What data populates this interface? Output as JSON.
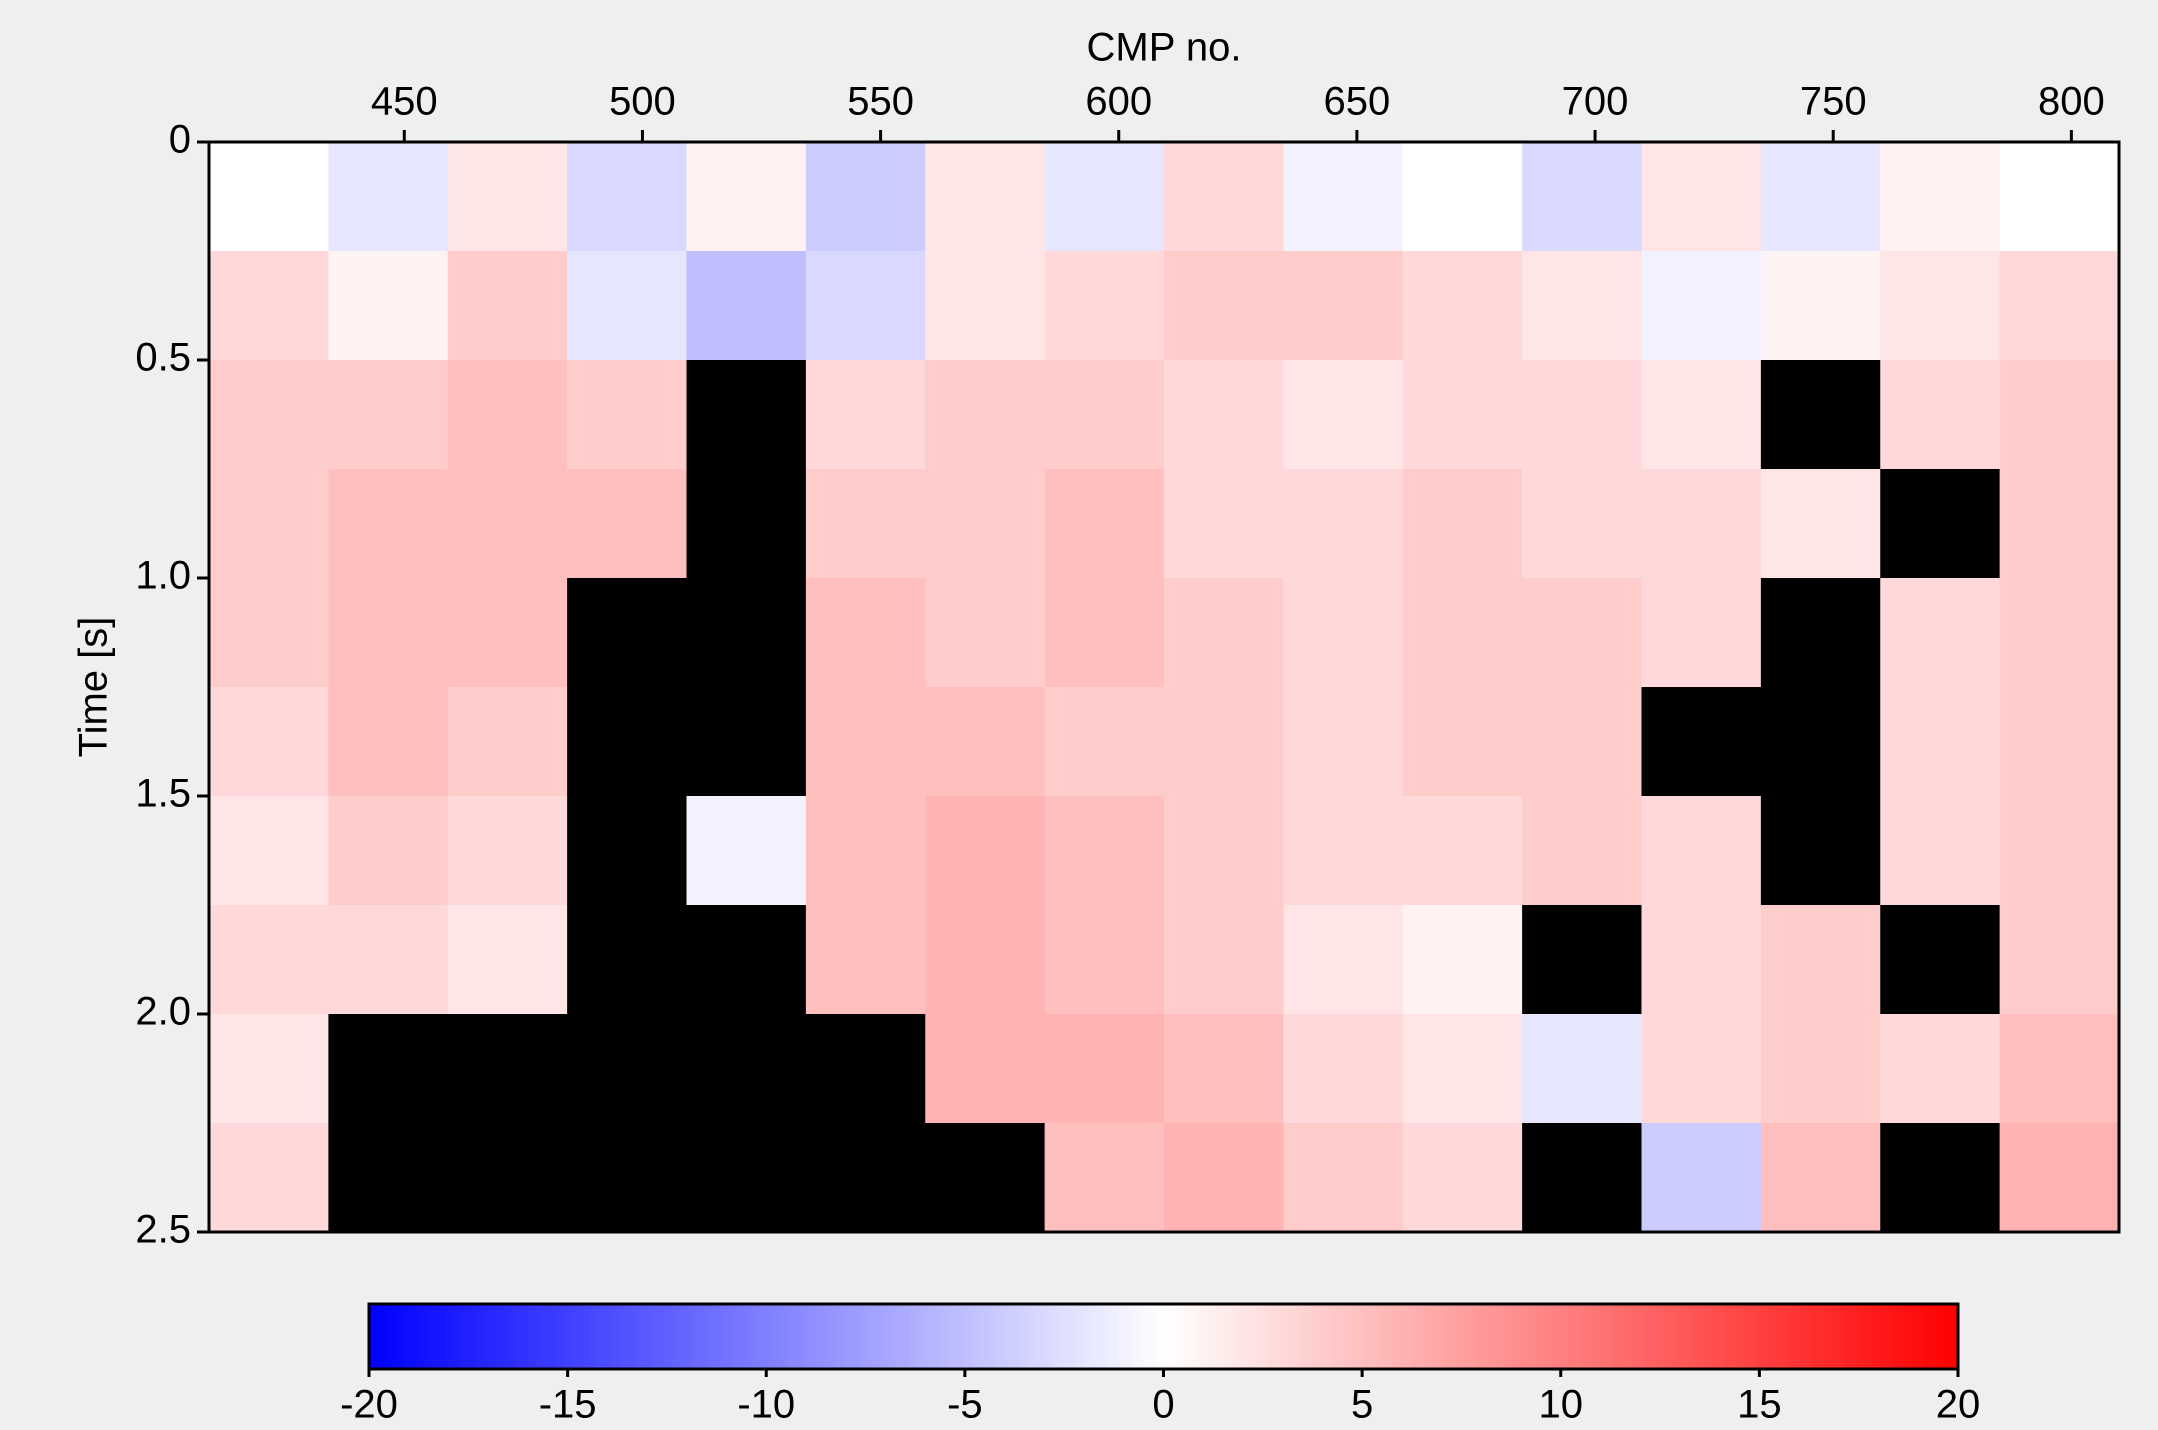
{
  "chart_data": {
    "type": "heatmap",
    "title": "CMP no.",
    "y_label": "Time  [s]",
    "xlim": [
      409,
      810
    ],
    "xticks": [
      450,
      500,
      550,
      600,
      650,
      700,
      750,
      800
    ],
    "ylim": [
      0,
      2.5
    ],
    "yticks": [
      0,
      0.5,
      {
        "value": 1,
        "label": "1.0"
      },
      1.5,
      {
        "value": 2,
        "label": "2.0"
      },
      2.5
    ],
    "clim": [
      -20,
      20
    ],
    "cticks": [
      -20,
      -15,
      -10,
      -5,
      0,
      5,
      10,
      15,
      20
    ],
    "colors": [
      "#0000ff",
      "#ffffff",
      "#ff0000"
    ],
    "nan_color": "#000000",
    "z": [
      [
        0,
        -2,
        2,
        -3,
        1,
        -4,
        2,
        -2,
        3,
        -1,
        0,
        -3,
        2,
        -2,
        1,
        0
      ],
      [
        3,
        1,
        4,
        -2,
        -5,
        -3,
        2,
        3,
        4,
        4,
        3,
        2,
        -1,
        1,
        2,
        3
      ],
      [
        4,
        4,
        5,
        4,
        null,
        3,
        4,
        4,
        3,
        2,
        3,
        3,
        2,
        null,
        3,
        4
      ],
      [
        4,
        5,
        5,
        5,
        null,
        4,
        4,
        5,
        3,
        3,
        4,
        3,
        3,
        2,
        null,
        4
      ],
      [
        4,
        5,
        5,
        null,
        null,
        5,
        4,
        5,
        4,
        3,
        4,
        4,
        3,
        null,
        3,
        4
      ],
      [
        3,
        5,
        4,
        null,
        null,
        5,
        5,
        4,
        4,
        3,
        4,
        4,
        null,
        null,
        3,
        4
      ],
      [
        2,
        4,
        3,
        null,
        -1,
        5,
        6,
        5,
        4,
        3,
        3,
        4,
        3,
        null,
        3,
        4
      ],
      [
        3,
        3,
        2,
        null,
        null,
        5,
        6,
        5,
        4,
        2,
        1,
        null,
        3,
        4,
        null,
        4
      ],
      [
        2,
        null,
        null,
        null,
        null,
        null,
        6,
        6,
        5,
        3,
        2,
        -2,
        3,
        4,
        3,
        5
      ],
      [
        3,
        null,
        null,
        null,
        null,
        null,
        null,
        5,
        6,
        4,
        3,
        null,
        -4,
        5,
        null,
        6
      ]
    ]
  }
}
